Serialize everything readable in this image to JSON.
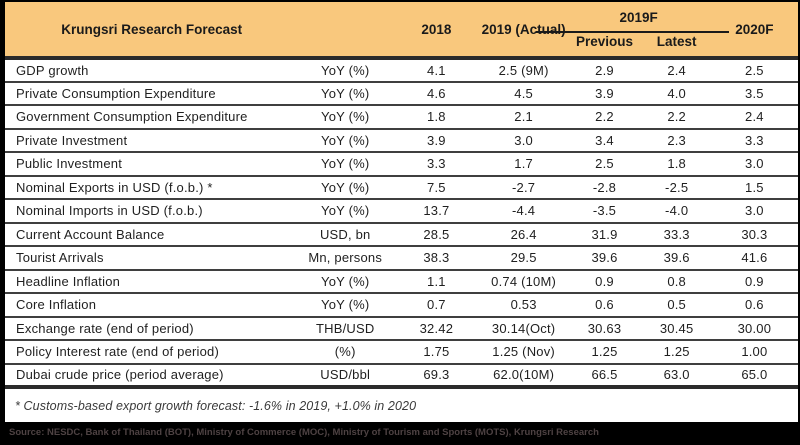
{
  "chart_data": {
    "type": "table",
    "title": "Krungsri Research Forecast",
    "column_headers": {
      "year_2018": "2018",
      "year_2019_actual": "2019 (Actual)",
      "group_2019f": "2019F",
      "previous": "Previous",
      "latest": "Latest",
      "year_2020f": "2020F"
    },
    "rows": [
      {
        "indicator": "GDP growth",
        "unit": "YoY (%)",
        "y2018": "4.1",
        "y2019_actual": "2.5 (9M)",
        "f2019_previous": "2.9",
        "f2019_latest": "2.4",
        "f2020": "2.5"
      },
      {
        "indicator": "Private Consumption Expenditure",
        "unit": "YoY (%)",
        "y2018": "4.6",
        "y2019_actual": "4.5",
        "f2019_previous": "3.9",
        "f2019_latest": "4.0",
        "f2020": "3.5"
      },
      {
        "indicator": "Government Consumption Expenditure",
        "unit": "YoY (%)",
        "y2018": "1.8",
        "y2019_actual": "2.1",
        "f2019_previous": "2.2",
        "f2019_latest": "2.2",
        "f2020": "2.4"
      },
      {
        "indicator": "Private Investment",
        "unit": "YoY (%)",
        "y2018": "3.9",
        "y2019_actual": "3.0",
        "f2019_previous": "3.4",
        "f2019_latest": "2.3",
        "f2020": "3.3"
      },
      {
        "indicator": "Public Investment",
        "unit": "YoY (%)",
        "y2018": "3.3",
        "y2019_actual": "1.7",
        "f2019_previous": "2.5",
        "f2019_latest": "1.8",
        "f2020": "3.0"
      },
      {
        "indicator": "Nominal Exports in USD (f.o.b.) *",
        "unit": "YoY (%)",
        "y2018": "7.5",
        "y2019_actual": "-2.7",
        "f2019_previous": "-2.8",
        "f2019_latest": "-2.5",
        "f2020": "1.5"
      },
      {
        "indicator": "Nominal Imports in USD (f.o.b.)",
        "unit": "YoY (%)",
        "y2018": "13.7",
        "y2019_actual": "-4.4",
        "f2019_previous": "-3.5",
        "f2019_latest": "-4.0",
        "f2020": "3.0"
      },
      {
        "indicator": "Current Account Balance",
        "unit": "USD, bn",
        "y2018": "28.5",
        "y2019_actual": "26.4",
        "f2019_previous": "31.9",
        "f2019_latest": "33.3",
        "f2020": "30.3"
      },
      {
        "indicator": "Tourist Arrivals",
        "unit": "Mn, persons",
        "y2018": "38.3",
        "y2019_actual": "29.5",
        "f2019_previous": "39.6",
        "f2019_latest": "39.6",
        "f2020": "41.6"
      },
      {
        "indicator": "Headline Inflation",
        "unit": "YoY (%)",
        "y2018": "1.1",
        "y2019_actual": "0.74 (10M)",
        "f2019_previous": "0.9",
        "f2019_latest": "0.8",
        "f2020": "0.9"
      },
      {
        "indicator": "Core Inflation",
        "unit": "YoY (%)",
        "y2018": "0.7",
        "y2019_actual": "0.53",
        "f2019_previous": "0.6",
        "f2019_latest": "0.5",
        "f2020": "0.6"
      },
      {
        "indicator": "Exchange rate (end of period)",
        "unit": "THB/USD",
        "y2018": "32.42",
        "y2019_actual": "30.14(Oct)",
        "f2019_previous": "30.63",
        "f2019_latest": "30.45",
        "f2020": "30.00"
      },
      {
        "indicator": "Policy Interest rate (end of period)",
        "unit": "(%)",
        "y2018": "1.75",
        "y2019_actual": "1.25 (Nov)",
        "f2019_previous": "1.25",
        "f2019_latest": "1.25",
        "f2020": "1.00"
      },
      {
        "indicator": "Dubai crude price (period average)",
        "unit": "USD/bbl",
        "y2018": "69.3",
        "y2019_actual": "62.0(10M)",
        "f2019_previous": "66.5",
        "f2019_latest": "63.0",
        "f2020": "65.0"
      }
    ],
    "footnote": "* Customs-based export growth forecast: -1.6% in 2019, +1.0% in 2020",
    "source": "Source: NESDC, Bank of Thailand (BOT), Ministry of Commerce (MOC), Ministry of Tourism and Sports (MOTS),  Krungsri Research"
  },
  "colors": {
    "header_bg": "#F9C87D",
    "grid_line": "#3F3F3F",
    "thick_line": "#2B2B2B",
    "outer_border": "#000000",
    "source_bar_bg": "#000000",
    "source_text": "#4E4243"
  }
}
